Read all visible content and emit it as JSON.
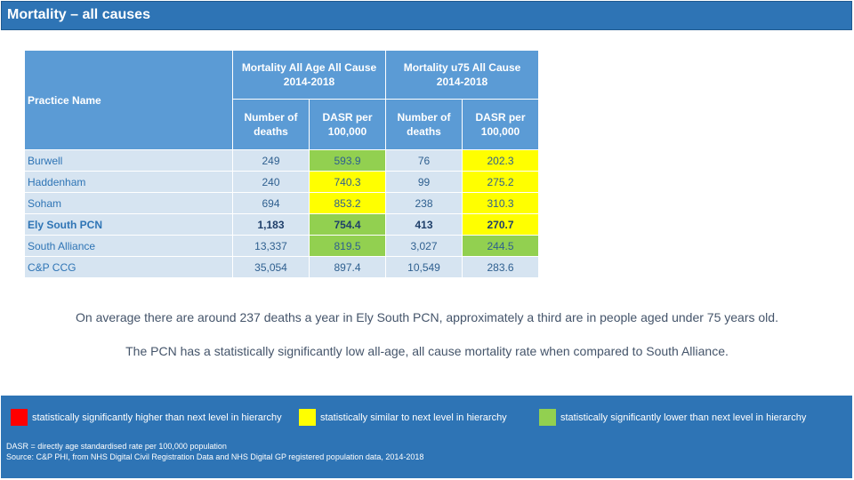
{
  "header": {
    "title": "Mortality – all causes"
  },
  "table": {
    "practice_header": "Practice Name",
    "groups": [
      {
        "line1": "Mortality All Age All Cause",
        "line2": "2014-2018"
      },
      {
        "line1": "Mortality u75 All Cause",
        "line2": "2014-2018"
      }
    ],
    "subheaders": [
      {
        "line1": "Number of",
        "line2": "deaths"
      },
      {
        "line1": "DASR per",
        "line2": "100,000"
      },
      {
        "line1": "Number of",
        "line2": "deaths"
      },
      {
        "line1": "DASR per",
        "line2": "100,000"
      }
    ],
    "rows": [
      {
        "name": "Burwell",
        "all_deaths": "249",
        "all_dasr": "593.9",
        "u75_deaths": "76",
        "u75_dasr": "202.3"
      },
      {
        "name": "Haddenham",
        "all_deaths": "240",
        "all_dasr": "740.3",
        "u75_deaths": "99",
        "u75_dasr": "275.2"
      },
      {
        "name": "Soham",
        "all_deaths": "694",
        "all_dasr": "853.2",
        "u75_deaths": "238",
        "u75_dasr": "310.3"
      },
      {
        "name": "Ely South PCN",
        "all_deaths": "1,183",
        "all_dasr": "754.4",
        "u75_deaths": "413",
        "u75_dasr": "270.7"
      },
      {
        "name": "South Alliance",
        "all_deaths": "13,337",
        "all_dasr": "819.5",
        "u75_deaths": "3,027",
        "u75_dasr": "244.5"
      },
      {
        "name": "C&P CCG",
        "all_deaths": "35,054",
        "all_dasr": "897.4",
        "u75_deaths": "10,549",
        "u75_dasr": "283.6"
      }
    ]
  },
  "summary": {
    "line1": "On average there are around 237 deaths a year in Ely South PCN, approximately a third are in people aged under 75 years old.",
    "line2": "The PCN has a statistically significantly low all-age, all cause mortality rate when compared to South Alliance."
  },
  "legend": [
    {
      "color": "#ff0000",
      "label": "statistically significantly higher than next level in hierarchy"
    },
    {
      "color": "#ffff00",
      "label": "statistically similar to next level in hierarchy"
    },
    {
      "color": "#92d050",
      "label": "statistically significantly lower than next level in hierarchy"
    }
  ],
  "footnotes": {
    "dasr": "DASR = directly age standardised rate per 100,000 population",
    "source": "Source: C&P PHI, from NHS Digital Civil Registration Data and NHS Digital GP registered population data, 2014-2018"
  }
}
